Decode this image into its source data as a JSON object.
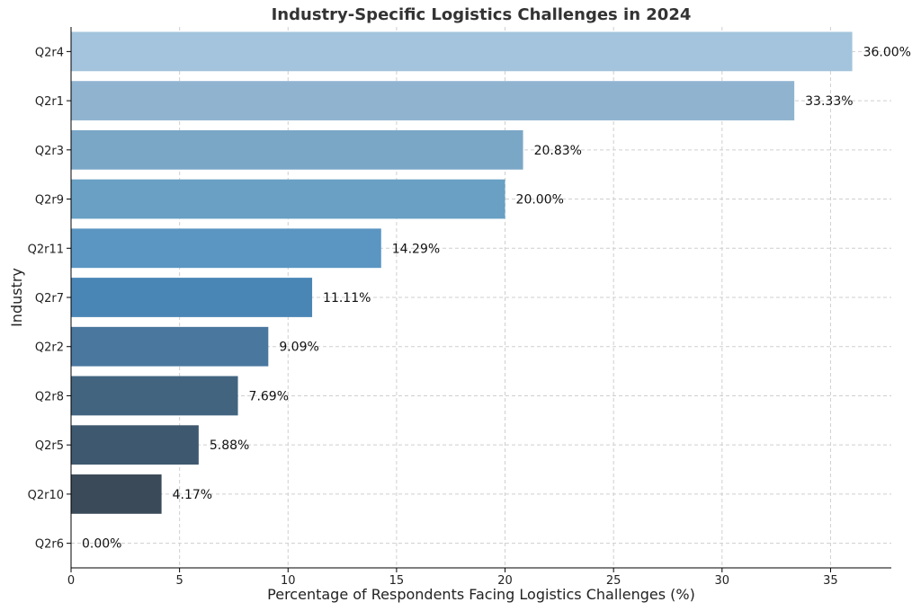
{
  "chart_data": {
    "type": "bar",
    "orientation": "horizontal",
    "title": "Industry-Specific Logistics Challenges in 2024",
    "xlabel": "Percentage of Respondents Facing Logistics Challenges (%)",
    "ylabel": "Industry",
    "categories": [
      "Q2r4",
      "Q2r1",
      "Q2r3",
      "Q2r9",
      "Q2r11",
      "Q2r7",
      "Q2r2",
      "Q2r8",
      "Q2r5",
      "Q2r10",
      "Q2r6"
    ],
    "values": [
      36.0,
      33.33,
      20.83,
      20.0,
      14.29,
      11.11,
      9.09,
      7.69,
      5.88,
      4.17,
      0.0
    ],
    "value_labels": [
      "36.00%",
      "33.33%",
      "20.83%",
      "20.00%",
      "14.29%",
      "11.11%",
      "9.09%",
      "7.69%",
      "5.88%",
      "4.17%",
      "0.00%"
    ],
    "xlim": [
      0,
      37.8
    ],
    "xticks": [
      0,
      5,
      10,
      15,
      20,
      25,
      30,
      35
    ],
    "grid": true,
    "bar_colors": [
      "#a3c4dc",
      "#90b4d0",
      "#7ba7c7",
      "#69a0c3",
      "#5b95c2",
      "#4a86b5",
      "#4a779e",
      "#42647f",
      "#3e596f",
      "#3a4a58",
      "#35414b"
    ]
  }
}
